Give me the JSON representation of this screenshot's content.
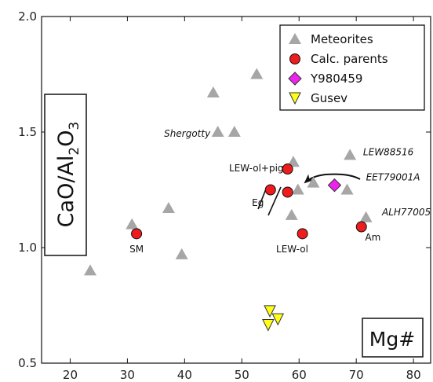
{
  "chart_data": {
    "type": "scatter",
    "xlim": [
      15,
      83
    ],
    "ylim": [
      0.5,
      2.0
    ],
    "x_ticks": [
      20,
      30,
      40,
      50,
      60,
      70,
      80
    ],
    "y_ticks": [
      0.5,
      1.0,
      1.5,
      2.0
    ],
    "y_tick_labels": [
      "0.5",
      "1.0",
      "1.5",
      "2.0"
    ],
    "xlabel": "Mg#",
    "ylabel": {
      "main": "CaO/Al",
      "sub1": "2",
      "mid": "O",
      "sub2": "3"
    },
    "grid": false,
    "legend_position": "top-right",
    "series": [
      {
        "name": "Meteorites",
        "marker": "triangle-up",
        "color": "#a6a6a6",
        "points": [
          {
            "x": 23.5,
            "y": 0.9
          },
          {
            "x": 30.8,
            "y": 1.1
          },
          {
            "x": 37.2,
            "y": 1.17
          },
          {
            "x": 39.5,
            "y": 0.97
          },
          {
            "x": 45.0,
            "y": 1.67
          },
          {
            "x": 45.8,
            "y": 1.5
          },
          {
            "x": 48.7,
            "y": 1.5
          },
          {
            "x": 52.6,
            "y": 1.75
          },
          {
            "x": 58.7,
            "y": 1.14
          },
          {
            "x": 59.0,
            "y": 1.37
          },
          {
            "x": 59.8,
            "y": 1.25
          },
          {
            "x": 62.5,
            "y": 1.28
          },
          {
            "x": 68.4,
            "y": 1.25
          },
          {
            "x": 68.9,
            "y": 1.4
          },
          {
            "x": 71.7,
            "y": 1.13
          }
        ]
      },
      {
        "name": "Calc. parents",
        "marker": "circle",
        "color": "#ee1c1c",
        "points": [
          {
            "x": 31.6,
            "y": 1.06
          },
          {
            "x": 55.0,
            "y": 1.25
          },
          {
            "x": 58.0,
            "y": 1.24
          },
          {
            "x": 58.0,
            "y": 1.34
          },
          {
            "x": 60.6,
            "y": 1.06
          },
          {
            "x": 70.9,
            "y": 1.09
          }
        ]
      },
      {
        "name": "Y980459",
        "marker": "diamond",
        "color": "#ee22ee",
        "points": [
          {
            "x": 66.2,
            "y": 1.27
          }
        ]
      },
      {
        "name": "Gusev",
        "marker": "triangle-down",
        "color": "#ffff1a",
        "points": [
          {
            "x": 54.9,
            "y": 0.725
          },
          {
            "x": 56.3,
            "y": 0.69
          },
          {
            "x": 54.6,
            "y": 0.665
          }
        ]
      }
    ],
    "annotations": [
      {
        "text": "Shergotty",
        "x": 44.5,
        "y": 1.48,
        "italic": true,
        "anchor": "end"
      },
      {
        "text": "LEW88516",
        "x": 71.2,
        "y": 1.4,
        "italic": true,
        "anchor": "start"
      },
      {
        "text": "EET79001A",
        "x": 71.7,
        "y": 1.29,
        "italic": true,
        "anchor": "start"
      },
      {
        "text": "ALH77005",
        "x": 74.5,
        "y": 1.14,
        "italic": true,
        "anchor": "start"
      },
      {
        "text": "LEW-ol+pig",
        "x": 57.3,
        "y": 1.33,
        "italic": false,
        "anchor": "end"
      },
      {
        "text": "Eg",
        "x": 52.8,
        "y": 1.18,
        "italic": false,
        "anchor": "middle"
      },
      {
        "text": "LEW-ol",
        "x": 58.8,
        "y": 0.98,
        "italic": false,
        "anchor": "middle"
      },
      {
        "text": "SM",
        "x": 31.6,
        "y": 0.98,
        "italic": false,
        "anchor": "middle"
      },
      {
        "text": "Am",
        "x": 72.9,
        "y": 1.03,
        "italic": false,
        "anchor": "middle"
      }
    ]
  }
}
